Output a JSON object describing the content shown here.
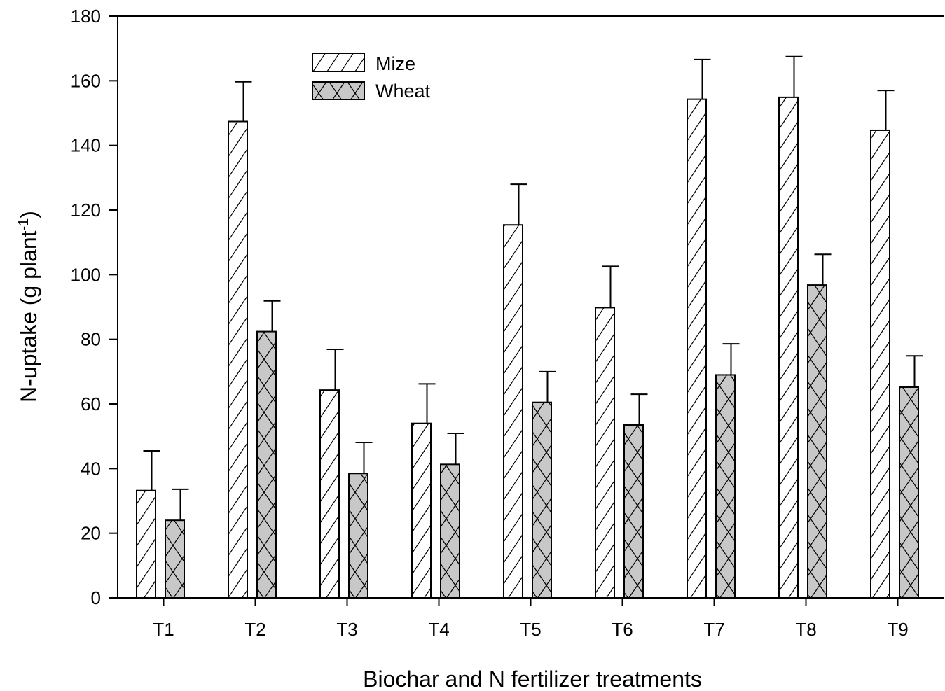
{
  "chart_data": {
    "type": "bar",
    "xlabel": "Biochar and N fertilizer treatments",
    "ylabel_main": "N-uptake (g plant",
    "ylabel_sup": "-1",
    "ylabel_close": ")",
    "ylim": [
      0,
      180
    ],
    "yticks": [
      0,
      20,
      40,
      60,
      80,
      100,
      120,
      140,
      160,
      180
    ],
    "categories": [
      "T1",
      "T2",
      "T3",
      "T4",
      "T5",
      "T6",
      "T7",
      "T8",
      "T9"
    ],
    "legend_position": "top-left",
    "grid": false,
    "series": [
      {
        "name": "Mize",
        "pattern": "diagonal-hatch",
        "fill_color": "#ffffff",
        "values": [
          33.2,
          147.4,
          64.3,
          54.0,
          115.4,
          89.8,
          154.3,
          154.9,
          144.7
        ],
        "errors": [
          12.3,
          12.3,
          12.6,
          12.2,
          12.6,
          12.8,
          12.3,
          12.6,
          12.3
        ]
      },
      {
        "name": "Wheat",
        "pattern": "cross-hatch",
        "fill_color": "#c8c8c8",
        "values": [
          24.0,
          82.4,
          38.5,
          41.3,
          60.5,
          53.5,
          69.0,
          96.8,
          65.2
        ],
        "errors": [
          9.6,
          9.5,
          9.6,
          9.6,
          9.5,
          9.5,
          9.6,
          9.5,
          9.7
        ]
      }
    ]
  }
}
